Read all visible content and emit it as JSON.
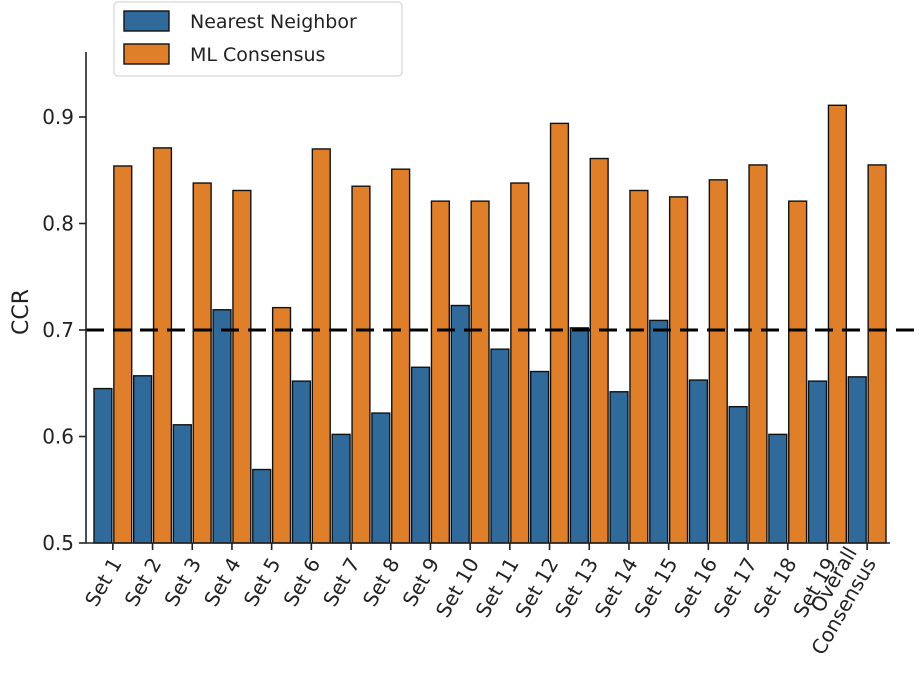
{
  "chart_data": {
    "type": "bar",
    "title": "",
    "xlabel": "",
    "ylabel": "CCR",
    "ylim": [
      0.5,
      0.95
    ],
    "yticks": [
      0.5,
      0.6,
      0.7,
      0.8,
      0.9
    ],
    "ytick_labels": [
      "0.5",
      "0.6",
      "0.7",
      "0.8",
      "0.9"
    ],
    "reference_line": 0.7,
    "grid": false,
    "legend_position": "top-left",
    "categories": [
      "Set 1",
      "Set 2",
      "Set 3",
      "Set 4",
      "Set 5",
      "Set 6",
      "Set 7",
      "Set 8",
      "Set 9",
      "Set 10",
      "Set 11",
      "Set 12",
      "Set 13",
      "Set 14",
      "Set 15",
      "Set 16",
      "Set 17",
      "Set 18",
      "Set 19",
      "Overall\nConsensus"
    ],
    "series": [
      {
        "name": "Nearest Neighbor",
        "color": "#2f6a9b",
        "values": [
          0.645,
          0.657,
          0.611,
          0.719,
          0.569,
          0.652,
          0.602,
          0.622,
          0.665,
          0.723,
          0.682,
          0.661,
          0.702,
          0.642,
          0.709,
          0.653,
          0.628,
          0.602,
          0.652,
          0.656
        ]
      },
      {
        "name": "ML Consensus",
        "color": "#e07f2a",
        "values": [
          0.854,
          0.871,
          0.838,
          0.831,
          0.721,
          0.87,
          0.835,
          0.851,
          0.821,
          0.821,
          0.838,
          0.894,
          0.861,
          0.831,
          0.825,
          0.841,
          0.855,
          0.821,
          0.911,
          0.855
        ]
      }
    ]
  }
}
